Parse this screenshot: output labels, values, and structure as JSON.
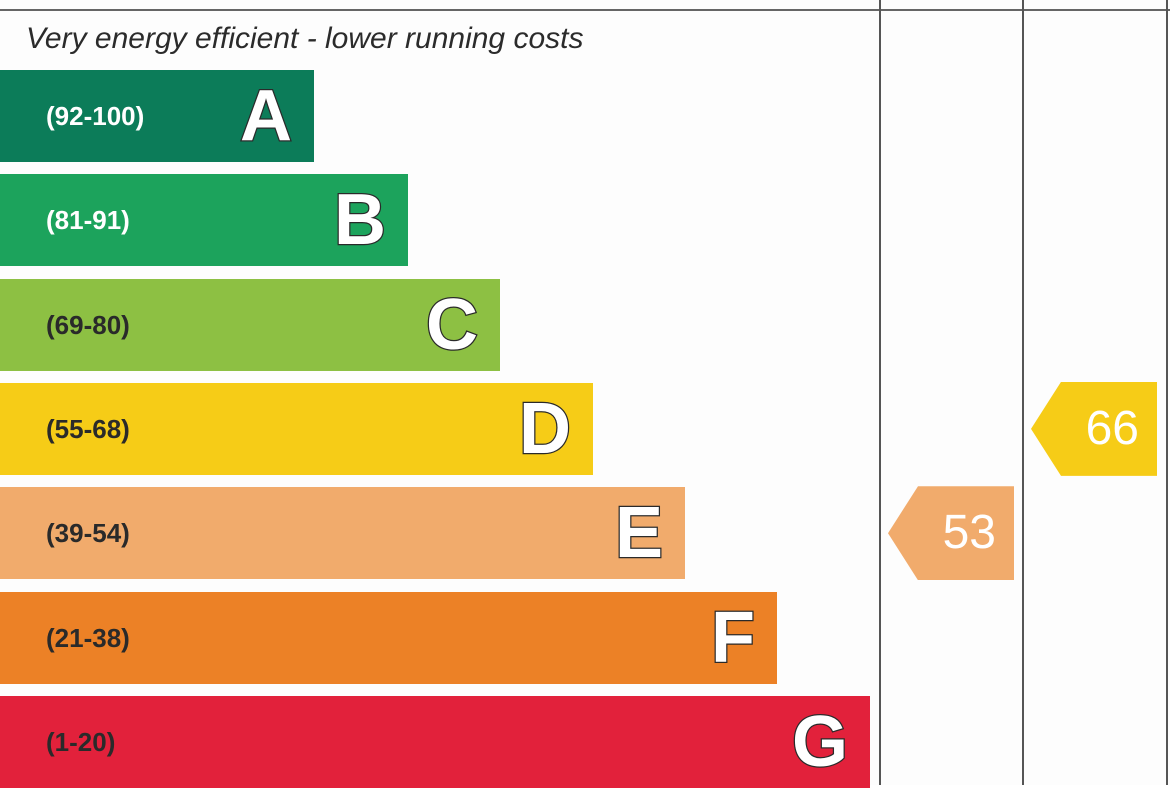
{
  "heading": "Very energy efficient - lower running costs",
  "chart_data": {
    "type": "bar",
    "bands": [
      {
        "letter": "A",
        "range": "(92-100)",
        "min": 92,
        "max": 100,
        "color": "#0c7c59",
        "text_color": "#ffffff"
      },
      {
        "letter": "B",
        "range": "(81-91)",
        "min": 81,
        "max": 91,
        "color": "#1ca35c",
        "text_color": "#ffffff"
      },
      {
        "letter": "C",
        "range": "(69-80)",
        "min": 69,
        "max": 80,
        "color": "#8dc043",
        "text_color": "#2a2a2a"
      },
      {
        "letter": "D",
        "range": "(55-68)",
        "min": 55,
        "max": 68,
        "color": "#f6cc17",
        "text_color": "#2a2a2a"
      },
      {
        "letter": "E",
        "range": "(39-54)",
        "min": 39,
        "max": 54,
        "color": "#f1ab6c",
        "text_color": "#2a2a2a"
      },
      {
        "letter": "F",
        "range": "(21-38)",
        "min": 21,
        "max": 38,
        "color": "#ec8126",
        "text_color": "#2a2a2a"
      },
      {
        "letter": "G",
        "range": "(1-20)",
        "min": 1,
        "max": 20,
        "color": "#e2213b",
        "text_color": "#2a2a2a"
      }
    ],
    "ratings": [
      {
        "value": 53,
        "band": "E",
        "color": "#f1ab6c",
        "column": 0
      },
      {
        "value": 66,
        "band": "D",
        "color": "#f6cc17",
        "column": 1
      }
    ]
  }
}
